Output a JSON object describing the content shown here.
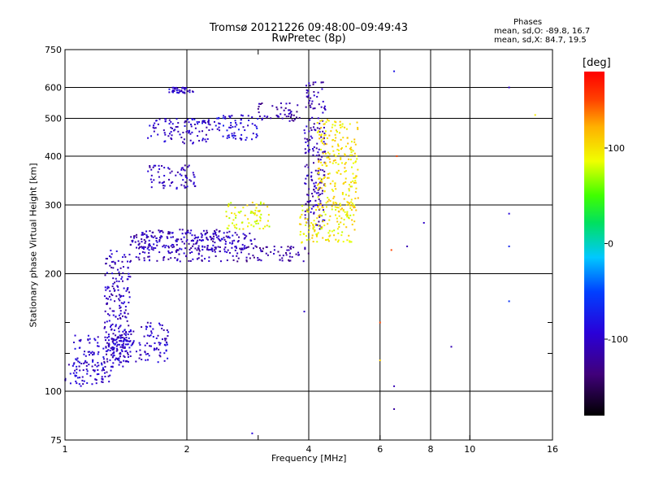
{
  "header": {
    "title_line1": "Tromsø 20121226 09:48:00–09:49:43",
    "title_line2": "RwPretec (8p)"
  },
  "phases": {
    "heading": "Phases",
    "line_o": "mean, sd,O: -89.8, 16.7",
    "line_x": "mean, sd,X:  84.7, 19.5"
  },
  "chart_data": {
    "type": "scatter",
    "xlabel": "Frequency [MHz]",
    "ylabel": "Stationary phase Virtual Height [km]",
    "x_scale": "log",
    "y_scale": "log",
    "xlim": [
      1,
      16
    ],
    "ylim": [
      75,
      750
    ],
    "x_ticks": [
      1,
      2,
      4,
      6,
      8,
      10,
      16
    ],
    "x_minor_ticks": [
      3
    ],
    "x_tick_labels": [
      "1",
      "2",
      "4",
      "6",
      "8",
      "10",
      "16"
    ],
    "y_ticks": [
      75,
      100,
      200,
      300,
      400,
      500,
      600,
      750
    ],
    "y_tick_labels": [
      "75",
      "100",
      "200",
      "300",
      "400",
      "500",
      "600",
      "750"
    ],
    "y_minor_ticks": [
      125,
      150
    ],
    "colorbar": {
      "label": "[deg]",
      "range": [
        -180,
        180
      ],
      "ticks": [
        100,
        0,
        -100
      ],
      "tick_labels": [
        "100",
        "0",
        "-100"
      ]
    },
    "series": [
      {
        "x": [
          1.0,
          1.3
        ],
        "y": [
          103,
          118
        ],
        "phase": -100
      },
      {
        "x": [
          1.05,
          1.4
        ],
        "y": [
          115,
          140
        ],
        "phase": -95
      },
      {
        "x": [
          1.25,
          1.45
        ],
        "y": [
          118,
          230
        ],
        "phase": -105
      },
      {
        "x": [
          1.45,
          2.6
        ],
        "y": [
          215,
          260
        ],
        "phase": -110
      },
      {
        "x": [
          1.5,
          3.0
        ],
        "y": [
          230,
          255
        ],
        "phase": -100
      },
      {
        "x": [
          2.6,
          4.0
        ],
        "y": [
          215,
          235
        ],
        "phase": -120
      },
      {
        "x": [
          1.6,
          2.1
        ],
        "y": [
          330,
          380
        ],
        "phase": -105
      },
      {
        "x": [
          1.6,
          2.3
        ],
        "y": [
          430,
          500
        ],
        "phase": -100
      },
      {
        "x": [
          2.3,
          3.0
        ],
        "y": [
          440,
          510
        ],
        "phase": -90
      },
      {
        "x": [
          3.0,
          3.8
        ],
        "y": [
          490,
          550
        ],
        "phase": -115
      },
      {
        "x": [
          1.8,
          2.1
        ],
        "y": [
          580,
          600
        ],
        "phase": -100
      },
      {
        "x": [
          3.9,
          4.4
        ],
        "y": [
          260,
          620
        ],
        "phase": -110
      },
      {
        "x": [
          2.5,
          3.2
        ],
        "y": [
          260,
          305
        ],
        "phase": 90
      },
      {
        "x": [
          3.8,
          5.2
        ],
        "y": [
          240,
          300
        ],
        "phase": 95
      },
      {
        "x": [
          4.2,
          5.3
        ],
        "y": [
          290,
          500
        ],
        "phase": 100
      },
      {
        "x": [
          1.3,
          1.8
        ],
        "y": [
          118,
          150
        ],
        "phase": -100
      }
    ],
    "outliers": [
      {
        "x": 6.5,
        "y": 660,
        "phase": -80
      },
      {
        "x": 6.4,
        "y": 230,
        "phase": 150
      },
      {
        "x": 6.6,
        "y": 400,
        "phase": 150
      },
      {
        "x": 7.0,
        "y": 235,
        "phase": -110
      },
      {
        "x": 7.7,
        "y": 270,
        "phase": -100
      },
      {
        "x": 9.0,
        "y": 130,
        "phase": -110
      },
      {
        "x": 12.5,
        "y": 600,
        "phase": -100
      },
      {
        "x": 12.5,
        "y": 285,
        "phase": -90
      },
      {
        "x": 12.5,
        "y": 235,
        "phase": -70
      },
      {
        "x": 12.5,
        "y": 170,
        "phase": -60
      },
      {
        "x": 14.5,
        "y": 510,
        "phase": 95
      },
      {
        "x": 6.5,
        "y": 90,
        "phase": -120
      },
      {
        "x": 6.5,
        "y": 103,
        "phase": -110
      },
      {
        "x": 6.0,
        "y": 120,
        "phase": 110
      },
      {
        "x": 6.0,
        "y": 150,
        "phase": 150
      },
      {
        "x": 2.9,
        "y": 78,
        "phase": -90
      },
      {
        "x": 3.9,
        "y": 160,
        "phase": -100
      }
    ]
  }
}
